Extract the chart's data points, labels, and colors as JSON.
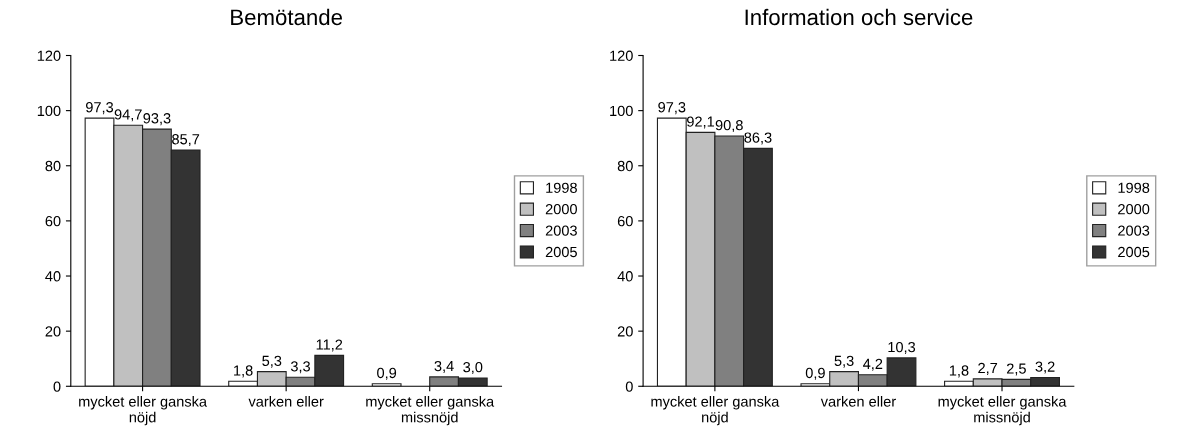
{
  "chart_data": [
    {
      "type": "bar",
      "title": "Bemötande",
      "categories": [
        "mycket eller ganska\nnöjd",
        "varken eller",
        "mycket eller ganska\nmissnöjd"
      ],
      "series": [
        {
          "name": "1998",
          "color": "#ffffff",
          "values": [
            97.3,
            1.8,
            0.9
          ],
          "value_labels": [
            "97,3",
            "1,8",
            "0,9"
          ]
        },
        {
          "name": "2000",
          "color": "#c0c0c0",
          "values": [
            94.7,
            5.3,
            null
          ],
          "value_labels": [
            "94,7",
            "5,3",
            null
          ]
        },
        {
          "name": "2003",
          "color": "#808080",
          "values": [
            93.3,
            3.3,
            3.4
          ],
          "value_labels": [
            "93,3",
            "3,3",
            "3,4"
          ]
        },
        {
          "name": "2005",
          "color": "#333333",
          "values": [
            85.7,
            11.2,
            3.0
          ],
          "value_labels": [
            "85,7",
            "11,2",
            "3,0"
          ]
        }
      ],
      "ylim": [
        0,
        120
      ],
      "yticks": [
        0,
        20,
        40,
        60,
        80,
        100,
        120
      ],
      "grid": false,
      "legend": "right"
    },
    {
      "type": "bar",
      "title": "Information och service",
      "categories": [
        "mycket eller ganska\nnöjd",
        "varken eller",
        "mycket eller ganska\nmissnöjd"
      ],
      "series": [
        {
          "name": "1998",
          "color": "#ffffff",
          "values": [
            97.3,
            0.9,
            1.8
          ],
          "value_labels": [
            "97,3",
            "0,9",
            "1,8"
          ]
        },
        {
          "name": "2000",
          "color": "#c0c0c0",
          "values": [
            92.1,
            5.3,
            2.7
          ],
          "value_labels": [
            "92,1",
            "5,3",
            "2,7"
          ]
        },
        {
          "name": "2003",
          "color": "#808080",
          "values": [
            90.8,
            4.2,
            2.5
          ],
          "value_labels": [
            "90,8",
            "4,2",
            "2,5"
          ]
        },
        {
          "name": "2005",
          "color": "#333333",
          "values": [
            86.3,
            10.3,
            3.2
          ],
          "value_labels": [
            "86,3",
            "10,3",
            "3,2"
          ]
        }
      ],
      "ylim": [
        0,
        120
      ],
      "yticks": [
        0,
        20,
        40,
        60,
        80,
        100,
        120
      ],
      "grid": false,
      "legend": "right"
    }
  ]
}
